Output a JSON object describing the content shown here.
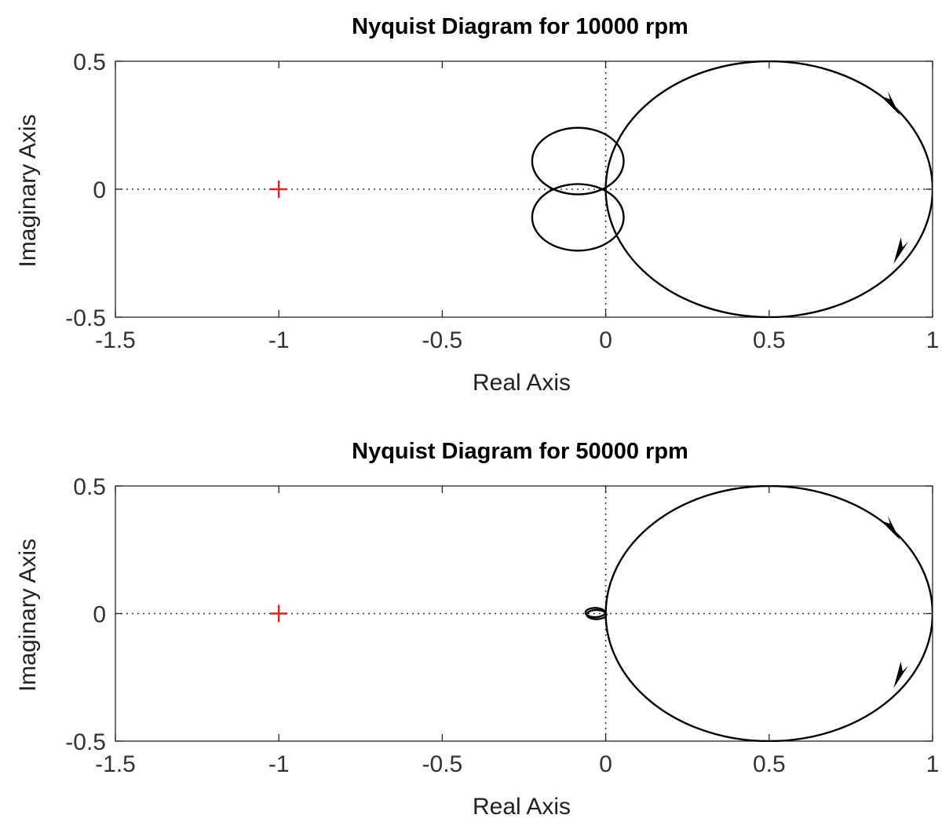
{
  "chart_data": [
    {
      "type": "line",
      "title": "Nyquist Diagram for 10000 rpm",
      "xlabel": "Real Axis",
      "ylabel": "Imaginary Axis",
      "xlim": [
        -1.5,
        1
      ],
      "ylim": [
        -0.5,
        0.5
      ],
      "xticks": [
        -1.5,
        -1,
        -0.5,
        0,
        0.5,
        1
      ],
      "xtick_labels": [
        "-1.5",
        "-1",
        "-0.5",
        "0",
        "0.5",
        "1"
      ],
      "yticks": [
        -0.5,
        0,
        0.5
      ],
      "ytick_labels": [
        "-0.5",
        "0",
        "0.5"
      ],
      "grid": false,
      "zero_lines": true,
      "critical_point": {
        "x": -1,
        "y": 0,
        "marker": "+",
        "color": "#e8201a"
      },
      "main_loop": {
        "center": [
          0.5,
          0
        ],
        "radius": 0.5
      },
      "inner_loops": [
        {
          "center_x": -0.085,
          "center_y": 0.11,
          "radius_x": 0.14,
          "radius_y": 0.13
        },
        {
          "center_x": -0.085,
          "center_y": -0.11,
          "radius_x": 0.14,
          "radius_y": 0.13
        }
      ],
      "arrows": [
        {
          "x": 0.89,
          "y": 0.31,
          "direction": "clockwise"
        },
        {
          "x": 0.89,
          "y": -0.27,
          "direction": "clockwise"
        }
      ]
    },
    {
      "type": "line",
      "title": "Nyquist Diagram for 50000 rpm",
      "xlabel": "Real Axis",
      "ylabel": "Imaginary Axis",
      "xlim": [
        -1.5,
        1
      ],
      "ylim": [
        -0.5,
        0.5
      ],
      "xticks": [
        -1.5,
        -1,
        -0.5,
        0,
        0.5,
        1
      ],
      "xtick_labels": [
        "-1.5",
        "-1",
        "-0.5",
        "0",
        "0.5",
        "1"
      ],
      "yticks": [
        -0.5,
        0,
        0.5
      ],
      "ytick_labels": [
        "-0.5",
        "0",
        "0.5"
      ],
      "grid": false,
      "zero_lines": true,
      "critical_point": {
        "x": -1,
        "y": 0,
        "marker": "+",
        "color": "#e8201a"
      },
      "main_loop": {
        "center": [
          0.5,
          0
        ],
        "radius": 0.5
      },
      "inner_loops": [
        {
          "center_x": -0.032,
          "center_y": 0.004,
          "radius_x": 0.03,
          "radius_y": 0.018
        },
        {
          "center_x": -0.028,
          "center_y": -0.004,
          "radius_x": 0.03,
          "radius_y": 0.018
        }
      ],
      "arrows": [
        {
          "x": 0.89,
          "y": 0.31,
          "direction": "clockwise"
        },
        {
          "x": 0.89,
          "y": -0.27,
          "direction": "clockwise"
        }
      ]
    }
  ]
}
